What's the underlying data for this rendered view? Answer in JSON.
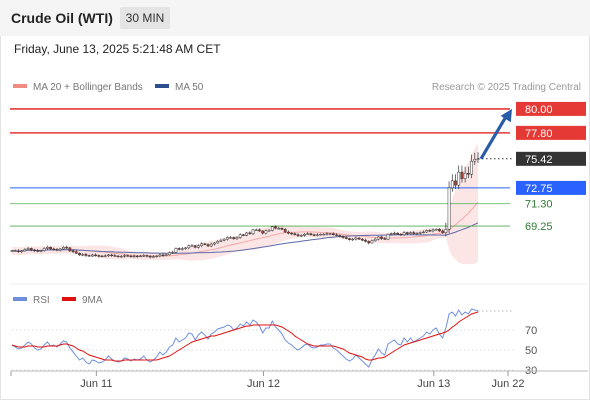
{
  "header": {
    "title": "Crude Oil (WTI)",
    "timeframe": "30 MIN"
  },
  "datetime": "Friday, June 13, 2025 5:21:48 AM CET",
  "legend": {
    "ma20": "MA 20 + Bollinger Bands",
    "ma50": "MA 50",
    "credit": "Research © 2025 Trading Central"
  },
  "colors": {
    "up": "#ffffff",
    "down": "#c0392b",
    "resistance": "#e53935",
    "support_blue": "#2962ff",
    "support_green": "#4caf50",
    "arrow": "#2a5caa",
    "band_fill": "#fbe0e0",
    "ma20_line": "#f4a9a9",
    "ma50_line": "#5b6aa8",
    "rsi_line": "#6f8fdd",
    "rsi_ma": "#e01010",
    "price_tag": "#333333"
  },
  "chart_data": [
    {
      "type": "candlestick",
      "y_unit": "USD",
      "ylim": [
        64.3,
        81.0
      ],
      "x_ticks": [
        "Jun 11",
        "Jun 12",
        "Jun 13",
        "Jun 22"
      ],
      "price_levels": [
        {
          "label": "80.00",
          "value": 80.0,
          "style": "resistance"
        },
        {
          "label": "77.80",
          "value": 77.8,
          "style": "resistance"
        },
        {
          "label": "75.42",
          "value": 75.42,
          "style": "current"
        },
        {
          "label": "72.75",
          "value": 72.75,
          "style": "support_blue"
        },
        {
          "label": "71.30",
          "value": 71.3,
          "style": "support_green"
        },
        {
          "label": "69.25",
          "value": 69.25,
          "style": "support_green"
        }
      ],
      "arrow": {
        "from_value": 75.42,
        "to_value": 80.0
      },
      "close": [
        66.98,
        66.98,
        66.9,
        66.97,
        67.1,
        67.2,
        67.05,
        67.0,
        66.92,
        67.0,
        67.2,
        67.3,
        67.15,
        67.1,
        67.05,
        67.15,
        67.3,
        67.25,
        66.98,
        66.9,
        66.75,
        66.6,
        66.65,
        66.55,
        66.5,
        66.6,
        66.55,
        66.5,
        66.48,
        66.52,
        66.6,
        66.55,
        66.5,
        66.45,
        66.48,
        66.55,
        66.5,
        66.45,
        66.5,
        66.48,
        66.5,
        66.55,
        66.48,
        66.42,
        66.45,
        66.5,
        66.6,
        66.55,
        66.62,
        66.8,
        66.85,
        67.2,
        67.1,
        67.18,
        67.25,
        67.45,
        67.45,
        67.3,
        67.45,
        67.62,
        67.55,
        67.42,
        67.6,
        67.7,
        67.85,
        67.95,
        68.05,
        68.2,
        68.2,
        68.08,
        68.2,
        68.45,
        68.4,
        68.62,
        68.55,
        68.9,
        68.9,
        68.8,
        68.6,
        68.82,
        68.85,
        69.2,
        69.05,
        69.05,
        68.95,
        68.7,
        68.6,
        68.55,
        68.45,
        68.35,
        68.4,
        68.5,
        68.55,
        68.45,
        68.42,
        68.45,
        68.5,
        68.5,
        68.55,
        68.55,
        68.45,
        68.4,
        68.3,
        68.2,
        68.1,
        68.0,
        68.05,
        68.15,
        68.05,
        67.95,
        67.85,
        67.7,
        67.9,
        68.05,
        68.25,
        68.1,
        68.05,
        68.5,
        68.55,
        68.6,
        68.5,
        68.45,
        68.65,
        68.55,
        68.65,
        68.55,
        68.6,
        68.65,
        68.7,
        68.85,
        68.8,
        68.9,
        68.95,
        68.8,
        68.65,
        68.95,
        72.75,
        73.4,
        73.0,
        74.2,
        73.6,
        74.1,
        74.0,
        75.2,
        75.38,
        75.42
      ]
    },
    {
      "type": "line",
      "ylim": [
        20,
        100
      ],
      "y_ticks": [
        70,
        50,
        30
      ],
      "series": [
        {
          "name": "RSI",
          "values": [
            55,
            53,
            51,
            52,
            55,
            58,
            56,
            52,
            50,
            51,
            55,
            58,
            54,
            55,
            53,
            56,
            59,
            58,
            52,
            48,
            44,
            40,
            42,
            38,
            36,
            40,
            39,
            37,
            38,
            40,
            44,
            41,
            39,
            38,
            39,
            42,
            41,
            39,
            41,
            40,
            41,
            44,
            40,
            38,
            40,
            43,
            48,
            45,
            48,
            53,
            55,
            62,
            58,
            60,
            62,
            67,
            66,
            60,
            65,
            68,
            65,
            61,
            66,
            68,
            71,
            72,
            73,
            75,
            74,
            70,
            72,
            76,
            74,
            78,
            75,
            80,
            78,
            74,
            67,
            72,
            72,
            79,
            73,
            70,
            66,
            60,
            57,
            55,
            52,
            50,
            52,
            55,
            56,
            53,
            52,
            53,
            55,
            55,
            56,
            56,
            52,
            50,
            47,
            44,
            41,
            39,
            41,
            45,
            42,
            39,
            36,
            33,
            40,
            45,
            51,
            47,
            45,
            56,
            58,
            60,
            56,
            55,
            62,
            58,
            62,
            58,
            60,
            62,
            64,
            68,
            66,
            70,
            72,
            66,
            62,
            72,
            86,
            88,
            84,
            90,
            85,
            88,
            86,
            91,
            90,
            89
          ]
        },
        {
          "name": "9MA",
          "values": [
            55,
            54,
            53,
            53,
            53,
            54,
            54,
            54,
            53,
            53,
            53,
            54,
            54,
            54,
            54,
            55,
            56,
            56,
            55,
            54,
            52,
            50,
            49,
            47,
            45,
            44,
            43,
            42,
            41,
            40,
            40,
            40,
            39,
            39,
            39,
            40,
            40,
            40,
            40,
            40,
            40,
            40,
            40,
            40,
            40,
            40,
            41,
            42,
            43,
            44,
            46,
            48,
            50,
            52,
            54,
            56,
            58,
            59,
            60,
            61,
            62,
            63,
            64,
            64,
            65,
            66,
            67,
            68,
            69,
            70,
            71,
            72,
            73,
            74,
            74,
            75,
            75,
            75,
            75,
            75,
            75,
            75,
            75,
            74,
            73,
            71,
            69,
            67,
            64,
            62,
            60,
            58,
            56,
            55,
            54,
            54,
            54,
            54,
            54,
            54,
            54,
            53,
            52,
            51,
            49,
            47,
            46,
            45,
            44,
            43,
            41,
            40,
            40,
            41,
            42,
            42,
            43,
            45,
            47,
            49,
            51,
            53,
            55,
            56,
            57,
            58,
            59,
            60,
            61,
            62,
            63,
            64,
            65,
            66,
            67,
            68,
            70,
            73,
            75,
            78,
            80,
            82,
            84,
            86,
            87,
            88
          ]
        }
      ]
    }
  ]
}
